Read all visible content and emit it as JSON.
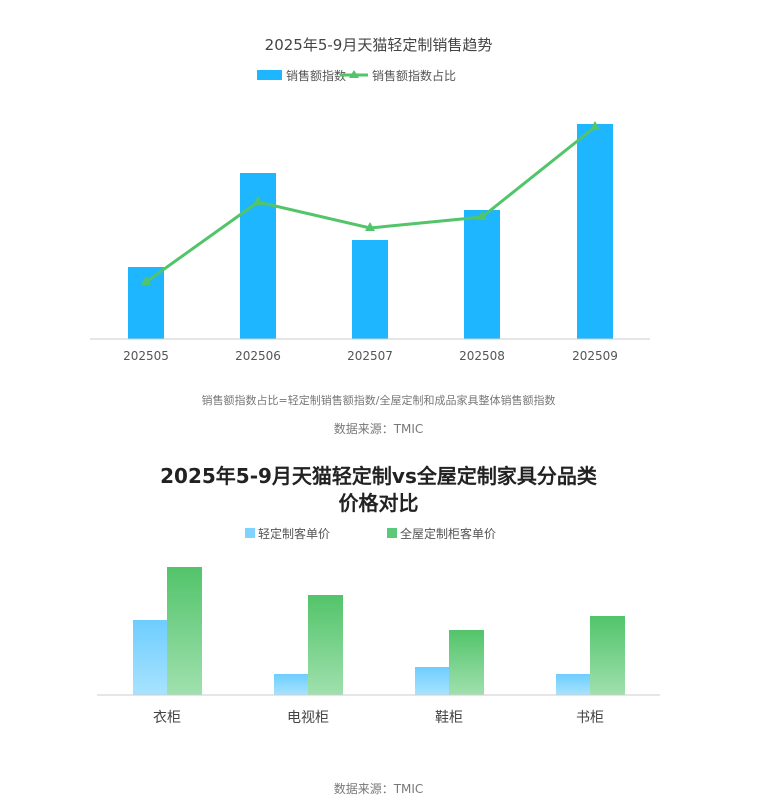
{
  "chart_data": [
    {
      "type": "bar+line",
      "title": "2025年5-9月天猫轻定制销售趋势",
      "categories": [
        "202505",
        "202506",
        "202507",
        "202508",
        "202509"
      ],
      "series": [
        {
          "name": "销售额指数",
          "type": "bar",
          "color": "#1EB6FF",
          "values": [
            72,
            166,
            99,
            129,
            215
          ]
        },
        {
          "name": "销售额指数占比",
          "type": "line",
          "marker": "triangle",
          "color": "#52C46A",
          "values": [
            57,
            137,
            111,
            122,
            212
          ]
        }
      ],
      "y_axis_shown": false,
      "grid": false,
      "legend": "top",
      "note": "销售额指数占比=轻定制销售额指数/全屋定制和成品家具整体销售额指数",
      "source": "数据来源：TMIC"
    },
    {
      "type": "bar",
      "title_line1": "2025年5-9月天猫轻定制vs全屋定制家具分品类",
      "title_line2": "价格对比",
      "categories": [
        "衣柜",
        "电视柜",
        "鞋柜",
        "书柜"
      ],
      "series": [
        {
          "name": "轻定制客单价",
          "color": "#7FD3FF",
          "values": [
            75,
            21,
            28,
            21
          ]
        },
        {
          "name": "全屋定制柜客单价",
          "color": "#5CC87A",
          "values": [
            128,
            100,
            65,
            79
          ]
        }
      ],
      "y_axis_shown": false,
      "grid": false,
      "legend": "top",
      "source": "数据来源：TMIC"
    }
  ]
}
